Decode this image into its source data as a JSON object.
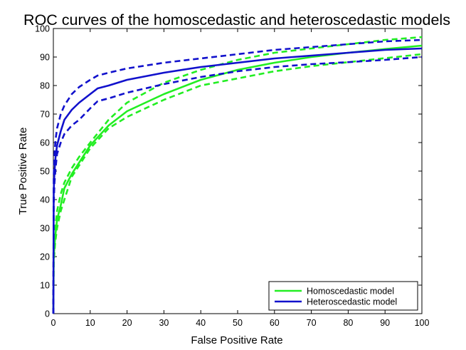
{
  "chart_data": {
    "type": "line",
    "title": "ROC curves of the homoscedastic and heteroscedastic models",
    "xlabel": "False Positive Rate",
    "ylabel": "True Positive Rate",
    "xlim": [
      0,
      100
    ],
    "ylim": [
      0,
      100
    ],
    "xticks": [
      0,
      10,
      20,
      30,
      40,
      50,
      60,
      70,
      80,
      90,
      100
    ],
    "yticks": [
      0,
      10,
      20,
      30,
      40,
      50,
      60,
      70,
      80,
      90,
      100
    ],
    "grid": false,
    "legend": {
      "placement": "bottom-right",
      "entries": [
        "Homoscedastic model",
        "Heteroscedastic model"
      ]
    },
    "colors": {
      "homoscedastic": "#22ee22",
      "heteroscedastic": "#1111cc"
    },
    "series": [
      {
        "name": "Homoscedastic model",
        "role": "estimate",
        "style": "solid",
        "color": "#22ee22",
        "x": [
          0,
          0.1,
          0.5,
          1,
          2,
          3,
          5,
          7,
          10,
          15,
          20,
          30,
          40,
          50,
          60,
          70,
          80,
          90,
          100
        ],
        "y": [
          0,
          20,
          27,
          33,
          38,
          44,
          49,
          53,
          59,
          66,
          71,
          77,
          82,
          85.5,
          88,
          90,
          91.5,
          92.8,
          94
        ]
      },
      {
        "name": "Homoscedastic model",
        "role": "upper bound",
        "style": "dashed",
        "color": "#22ee22",
        "x": [
          0,
          0.1,
          0.5,
          1,
          2,
          3,
          5,
          7,
          10,
          15,
          20,
          30,
          40,
          50,
          60,
          70,
          80,
          90,
          100
        ],
        "y": [
          0,
          22,
          30,
          36,
          42,
          46,
          51,
          55,
          60,
          68,
          74,
          81,
          85.5,
          89,
          91.5,
          93,
          94.5,
          96,
          97
        ]
      },
      {
        "name": "Homoscedastic model",
        "role": "lower bound",
        "style": "dashed",
        "color": "#22ee22",
        "x": [
          0,
          0.1,
          0.5,
          1,
          2,
          3,
          5,
          7,
          10,
          15,
          20,
          30,
          40,
          50,
          60,
          70,
          80,
          90,
          100
        ],
        "y": [
          0,
          18,
          25,
          30,
          36,
          40,
          48,
          52,
          58,
          65,
          69,
          75,
          80,
          82.5,
          85,
          86.8,
          88.2,
          89.6,
          91
        ]
      },
      {
        "name": "Heteroscedastic model",
        "role": "estimate",
        "style": "solid",
        "color": "#1111cc",
        "x": [
          0,
          0.1,
          0.3,
          0.6,
          1,
          2,
          3,
          5,
          7,
          10,
          12,
          15,
          20,
          30,
          40,
          50,
          60,
          70,
          80,
          90,
          100
        ],
        "y": [
          0,
          43,
          50,
          55,
          59,
          64,
          68,
          71.5,
          74,
          77,
          79,
          80,
          82,
          84.5,
          86.5,
          88,
          89.5,
          90.5,
          91.5,
          92.5,
          93
        ]
      },
      {
        "name": "Heteroscedastic model",
        "role": "upper bound",
        "style": "dashed",
        "color": "#1111cc",
        "x": [
          0,
          0.1,
          0.3,
          0.6,
          1,
          2,
          3,
          5,
          7,
          10,
          12,
          15,
          20,
          30,
          40,
          50,
          60,
          70,
          80,
          90,
          100
        ],
        "y": [
          0,
          48,
          56,
          61,
          65,
          70,
          73,
          77,
          79.5,
          82,
          83.5,
          84.5,
          86,
          88,
          89.5,
          91,
          92.5,
          93.5,
          94.5,
          95.5,
          96
        ]
      },
      {
        "name": "Heteroscedastic model",
        "role": "lower bound",
        "style": "dashed",
        "color": "#1111cc",
        "x": [
          0,
          0.1,
          0.3,
          0.6,
          1,
          2,
          3,
          5,
          7,
          10,
          12,
          15,
          20,
          30,
          40,
          50,
          60,
          70,
          80,
          90,
          100
        ],
        "y": [
          0,
          38,
          46,
          51,
          56,
          60,
          63,
          66,
          68,
          72,
          74.5,
          75.5,
          77.5,
          80.5,
          83,
          85,
          86.5,
          87.5,
          88.2,
          89,
          90
        ]
      }
    ]
  }
}
